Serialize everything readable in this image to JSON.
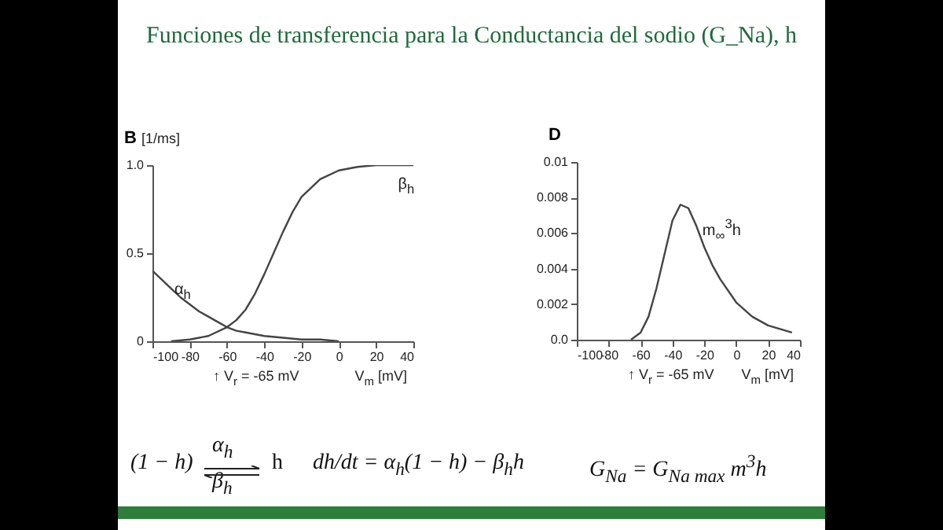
{
  "chart_data": [
    {
      "type": "line",
      "title": "B",
      "ylabel": "[1/ms]",
      "xlabel": "V$_{m}$ [mV]",
      "xlim": [
        -100,
        40
      ],
      "xticks": [
        -100,
        -80,
        -60,
        -40,
        -20,
        0,
        20,
        40
      ],
      "ylim": [
        0,
        1
      ],
      "yticks": [
        0,
        0.5,
        {
          "value": 1,
          "label": "1.0"
        }
      ],
      "grid": false,
      "legend": false,
      "marker": "none",
      "annotations": [
        "↑ V$_{r}$ = -65 mV"
      ],
      "series": [
        {
          "name": "α$_{h}$",
          "color": "#444444",
          "x": [
            -100,
            -95,
            -90,
            -85,
            -80,
            -75,
            -70,
            -65,
            -60,
            -55,
            -50,
            -45,
            -40,
            -30,
            -20,
            -10,
            0
          ],
          "values": [
            0.4,
            0.35,
            0.3,
            0.25,
            0.21,
            0.17,
            0.14,
            0.11,
            0.08,
            0.06,
            0.05,
            0.04,
            0.03,
            0.02,
            0.01,
            0.01,
            0
          ]
        },
        {
          "name": "β$_{h}$",
          "color": "#444444",
          "x": [
            -90,
            -80,
            -70,
            -60,
            -55,
            -50,
            -45,
            -40,
            -35,
            -30,
            -25,
            -20,
            -10,
            0,
            10,
            20,
            30,
            40
          ],
          "values": [
            0,
            0.01,
            0.03,
            0.08,
            0.12,
            0.18,
            0.27,
            0.38,
            0.5,
            0.62,
            0.73,
            0.82,
            0.92,
            0.97,
            0.99,
            1,
            1,
            1
          ]
        }
      ]
    },
    {
      "type": "line",
      "title": "D",
      "xlabel": "V$_{m}$ [mV]",
      "xlim": [
        -100,
        40
      ],
      "xticks": [
        -100,
        -80,
        -60,
        -40,
        -20,
        0,
        20,
        40
      ],
      "ylim": [
        0,
        0.01
      ],
      "yticks": [
        {
          "value": 0,
          "label": "0.0"
        },
        0.002,
        0.004,
        0.006,
        0.008,
        0.01
      ],
      "grid": false,
      "legend": false,
      "marker": "none",
      "annotations": [
        "↑ V$_{r}$ = -65 mV"
      ],
      "series": [
        {
          "name": "m$_{∞}$$^{3}$h",
          "color": "#444444",
          "x": [
            -66,
            -60,
            -55,
            -50,
            -45,
            -40,
            -35,
            -30,
            -25,
            -20,
            -15,
            -10,
            0,
            10,
            20,
            35
          ],
          "values": [
            0,
            0.0004,
            0.0013,
            0.0029,
            0.0048,
            0.0067,
            0.0076,
            0.0074,
            0.0064,
            0.0052,
            0.0042,
            0.0034,
            0.0021,
            0.0013,
            0.0008,
            0.0004
          ]
        }
      ]
    },
    {
      "type": "other",
      "title": "Funciones de transferencia para la Conductancia del sodio (G_Na), h",
      "annotations": [
        "(1 − h)",
        "α$_{h}$",
        "β$_{h}$",
        "h",
        "dh/dt = α$_{h}$(1 − h) − β$_{h}$h",
        "G$_{Na}$ = G$_{Na max}$ m$^{3}$h"
      ]
    }
  ]
}
